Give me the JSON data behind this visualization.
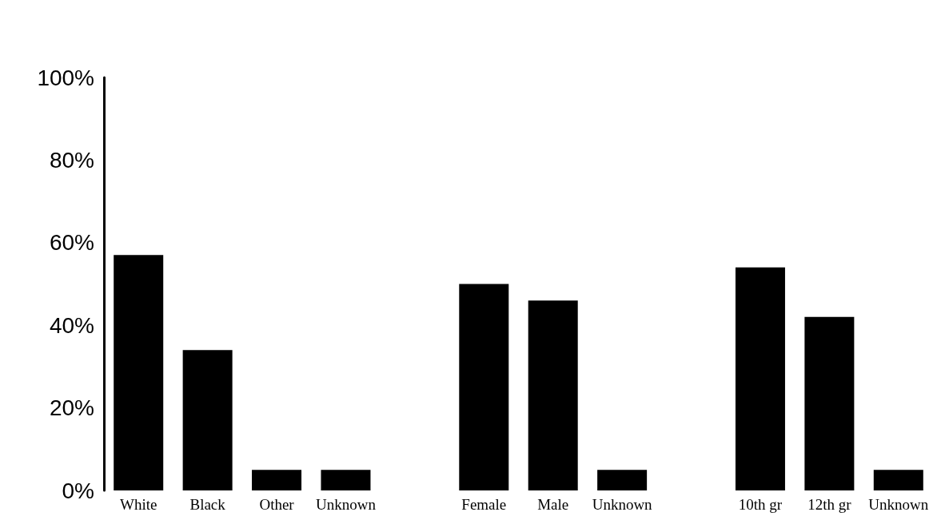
{
  "chart_data": {
    "type": "bar",
    "categories": [
      "White",
      "Black",
      "Other",
      "Unknown",
      null,
      "Female",
      "Male",
      "Unknown",
      null,
      "10th gr",
      "12th gr",
      "Unknown"
    ],
    "values": [
      57,
      34,
      5,
      5,
      null,
      50,
      46,
      5,
      null,
      54,
      42,
      5
    ],
    "color": "#000000",
    "ylim": [
      0,
      100
    ],
    "yticks": [
      {
        "value": 0,
        "label": "0%"
      },
      {
        "value": 20,
        "label": "20%"
      },
      {
        "value": 40,
        "label": "40%"
      },
      {
        "value": 60,
        "label": "60%"
      },
      {
        "value": 80,
        "label": "80%"
      },
      {
        "value": 100,
        "label": "100%"
      }
    ],
    "grid": false
  }
}
